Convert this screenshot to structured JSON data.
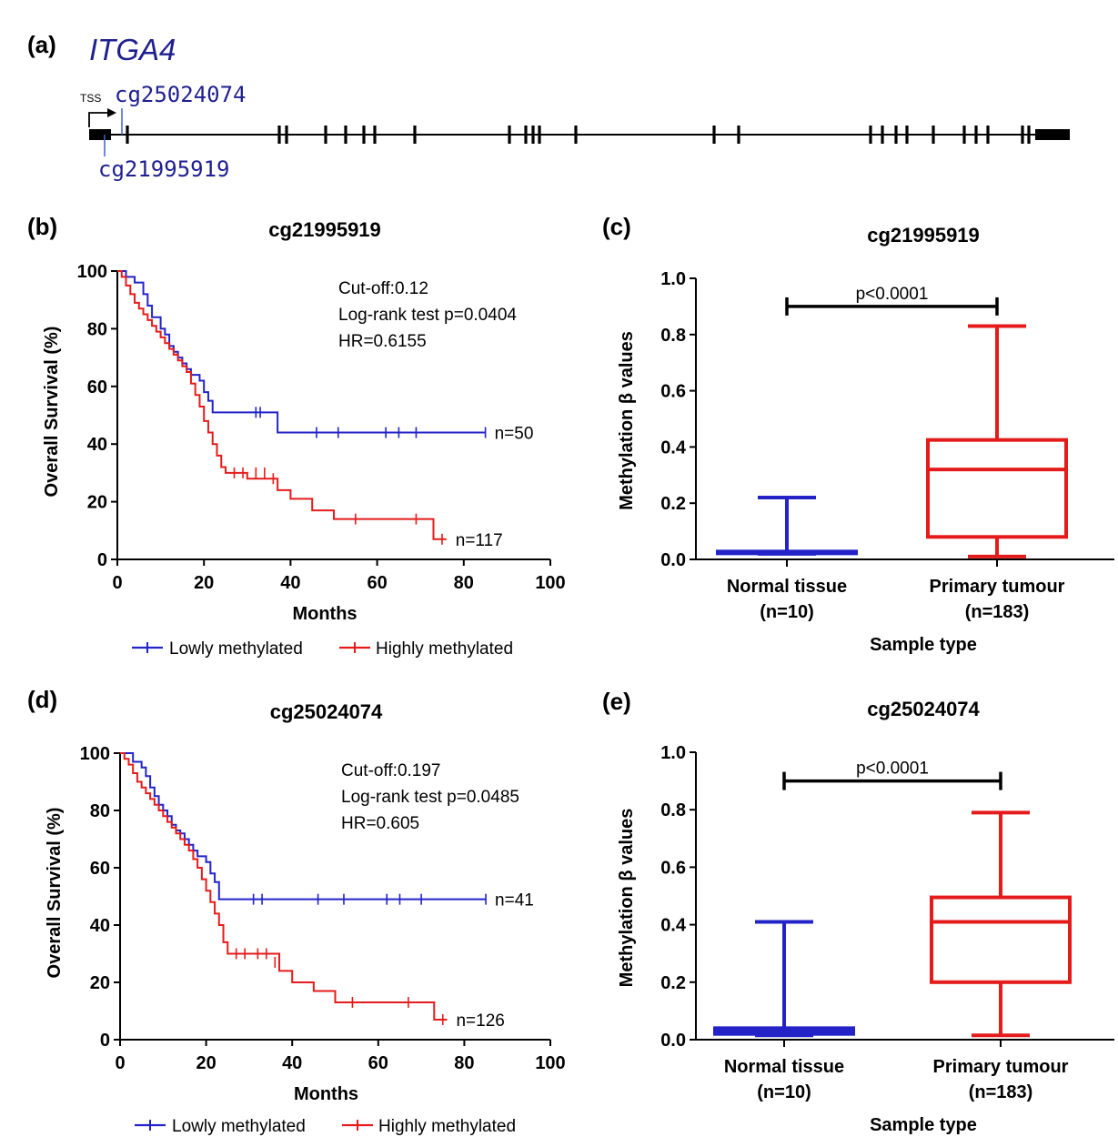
{
  "colors": {
    "low": "#2323c8",
    "high": "#e51b1b",
    "gene_text": "#1f1f8f",
    "axis": "#000000"
  },
  "gene_panel": {
    "label": "(a)",
    "gene": "ITGA4",
    "tss_label": "TSS",
    "probe_upper": "cg25024074",
    "probe_lower": "cg21995919",
    "exon_count": 28
  },
  "chart_data": [
    {
      "panel": "(b)",
      "type": "line",
      "title": "cg21995919",
      "xlabel": "Months",
      "ylabel": "Overall Survival (%)",
      "xlim": [
        0,
        100
      ],
      "ylim": [
        0,
        100
      ],
      "xticks": [
        "0",
        "20",
        "40",
        "60",
        "80",
        "100"
      ],
      "yticks": [
        "0",
        "20",
        "40",
        "60",
        "80",
        "100"
      ],
      "annotations": [
        "Cut-off:0.12",
        "Log-rank test p=0.0404",
        "HR=0.6155"
      ],
      "legend": [
        "Lowly methylated",
        "Highly methylated"
      ],
      "series": [
        {
          "name": "Lowly methylated",
          "n_label": "n=50",
          "x": [
            0,
            2,
            4,
            6,
            7,
            8,
            10,
            11,
            12,
            13,
            14,
            15,
            16,
            17,
            19,
            20,
            21,
            22,
            25,
            37,
            85
          ],
          "y": [
            100,
            98,
            96,
            92,
            88,
            84,
            80,
            78,
            74,
            72,
            70,
            68,
            66,
            64,
            62,
            58,
            55,
            51,
            51,
            44,
            44
          ],
          "censor_x": [
            32,
            33,
            46,
            51,
            62,
            65,
            69,
            85
          ]
        },
        {
          "name": "Highly methylated",
          "n_label": "n=117",
          "x": [
            0,
            1,
            2,
            3,
            4,
            5,
            6,
            7,
            8,
            9,
            10,
            11,
            12,
            13,
            14,
            15,
            16,
            17,
            18,
            19,
            20,
            21,
            22,
            23,
            24,
            25,
            30,
            35,
            37,
            40,
            45,
            50,
            55,
            60,
            65,
            70,
            73,
            76
          ],
          "y": [
            100,
            98,
            95,
            92,
            89,
            87,
            85,
            83,
            81,
            79,
            77,
            75,
            73,
            71,
            69,
            67,
            65,
            61,
            57,
            53,
            48,
            44,
            40,
            36,
            32,
            30,
            28,
            28,
            24,
            21,
            17,
            14,
            14,
            14,
            14,
            14,
            7,
            7
          ],
          "censor_x": [
            27,
            29,
            32,
            34,
            36,
            55,
            69,
            75
          ],
          "censor_y": [
            30,
            30,
            30,
            30,
            28,
            14,
            14,
            7
          ]
        }
      ]
    },
    {
      "panel": "(c)",
      "type": "box",
      "title": "cg21995919",
      "xlabel": "Sample type",
      "ylabel": "Methylation β values",
      "ylim": [
        0,
        1
      ],
      "yticks": [
        "0.0",
        "0.2",
        "0.4",
        "0.6",
        "0.8",
        "1.0"
      ],
      "significance": "p<0.0001",
      "categories": [
        {
          "line1": "Normal tissue",
          "line2": "(n=10)",
          "color": "blue",
          "min": 0.02,
          "q1": 0.022,
          "median": 0.025,
          "q3": 0.028,
          "max": 0.22
        },
        {
          "line1": "Primary tumour",
          "line2": "(n=183)",
          "color": "red",
          "min": 0.01,
          "q1": 0.08,
          "median": 0.32,
          "q3": 0.425,
          "max": 0.83
        }
      ]
    },
    {
      "panel": "(d)",
      "type": "line",
      "title": "cg25024074",
      "xlabel": "Months",
      "ylabel": "Overall Survival (%)",
      "xlim": [
        0,
        100
      ],
      "ylim": [
        0,
        100
      ],
      "xticks": [
        "0",
        "20",
        "40",
        "60",
        "80",
        "100"
      ],
      "yticks": [
        "0",
        "20",
        "40",
        "60",
        "80",
        "100"
      ],
      "annotations": [
        "Cut-off:0.197",
        "Log-rank test p=0.0485",
        "HR=0.605"
      ],
      "legend": [
        "Lowly methylated",
        "Highly methylated"
      ],
      "series": [
        {
          "name": "Lowly methylated",
          "n_label": "n=41",
          "x": [
            0,
            3,
            5,
            6,
            7,
            8,
            9,
            10,
            11,
            12,
            13,
            14,
            15,
            16,
            17,
            18,
            20,
            21,
            22,
            23,
            25,
            85
          ],
          "y": [
            100,
            97,
            95,
            92,
            88,
            85,
            82,
            80,
            78,
            75,
            73,
            72,
            70,
            68,
            66,
            64,
            62,
            58,
            55,
            49,
            49,
            49
          ],
          "censor_x": [
            31,
            33,
            46,
            52,
            62,
            65,
            70,
            85
          ]
        },
        {
          "name": "Highly methylated",
          "n_label": "n=126",
          "x": [
            0,
            1,
            2,
            3,
            4,
            5,
            6,
            7,
            8,
            9,
            10,
            11,
            12,
            13,
            14,
            15,
            16,
            17,
            18,
            19,
            20,
            21,
            22,
            23,
            24,
            25,
            30,
            35,
            37,
            40,
            45,
            50,
            55,
            60,
            65,
            70,
            73,
            76
          ],
          "y": [
            100,
            98,
            96,
            93,
            90,
            88,
            86,
            84,
            82,
            80,
            78,
            76,
            74,
            72,
            70,
            68,
            66,
            63,
            60,
            56,
            52,
            48,
            44,
            40,
            34,
            30,
            30,
            30,
            24,
            20,
            17,
            13,
            13,
            13,
            13,
            13,
            7,
            7
          ],
          "censor_x": [
            27,
            29,
            32,
            34,
            36,
            54,
            67,
            75
          ],
          "censor_y": [
            30,
            30,
            30,
            30,
            27,
            13,
            13,
            7
          ]
        }
      ]
    },
    {
      "panel": "(e)",
      "type": "box",
      "title": "cg25024074",
      "xlabel": "Sample type",
      "ylabel": "Methylation β values",
      "ylim": [
        0,
        1
      ],
      "yticks": [
        "0.0",
        "0.2",
        "0.4",
        "0.6",
        "0.8",
        "1.0"
      ],
      "significance": "p<0.0001",
      "categories": [
        {
          "line1": "Normal tissue",
          "line2": "(n=10)",
          "color": "blue",
          "min": 0.015,
          "q1": 0.02,
          "median": 0.03,
          "q3": 0.04,
          "max": 0.41
        },
        {
          "line1": "Primary tumour",
          "line2": "(n=183)",
          "color": "red",
          "min": 0.015,
          "q1": 0.2,
          "median": 0.41,
          "q3": 0.495,
          "max": 0.79
        }
      ]
    }
  ]
}
